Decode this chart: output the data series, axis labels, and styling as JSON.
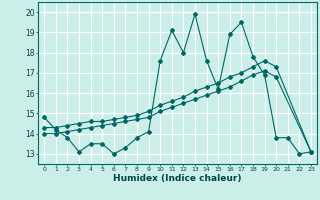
{
  "xlabel": "Humidex (Indice chaleur)",
  "bg_color": "#cceee8",
  "grid_color": "#ffffff",
  "line_color": "#006666",
  "xlim": [
    -0.5,
    23.5
  ],
  "ylim": [
    12.5,
    20.5
  ],
  "yticks": [
    13,
    14,
    15,
    16,
    17,
    18,
    19,
    20
  ],
  "xticks": [
    0,
    1,
    2,
    3,
    4,
    5,
    6,
    7,
    8,
    9,
    10,
    11,
    12,
    13,
    14,
    15,
    16,
    17,
    18,
    19,
    20,
    21,
    22,
    23
  ],
  "line1_x": [
    0,
    1,
    2,
    3,
    4,
    5,
    6,
    7,
    8,
    9,
    10,
    11,
    12,
    13,
    14,
    15,
    16,
    17,
    18,
    19,
    20,
    21,
    22,
    23
  ],
  "line1_y": [
    14.8,
    14.2,
    13.8,
    13.1,
    13.5,
    13.5,
    13.0,
    13.3,
    13.8,
    14.1,
    17.6,
    19.1,
    18.0,
    19.9,
    17.6,
    16.2,
    18.9,
    19.5,
    17.8,
    16.9,
    13.8,
    13.8,
    13.0,
    13.1
  ],
  "line2_x": [
    0,
    1,
    2,
    3,
    4,
    5,
    6,
    7,
    8,
    9,
    10,
    11,
    12,
    13,
    14,
    15,
    16,
    17,
    18,
    19,
    20,
    23
  ],
  "line2_y": [
    14.0,
    14.0,
    14.1,
    14.2,
    14.3,
    14.4,
    14.5,
    14.6,
    14.7,
    14.8,
    15.1,
    15.3,
    15.5,
    15.7,
    15.9,
    16.1,
    16.3,
    16.6,
    16.9,
    17.1,
    16.8,
    13.1
  ],
  "line3_x": [
    0,
    1,
    2,
    3,
    4,
    5,
    6,
    7,
    8,
    9,
    10,
    11,
    12,
    13,
    14,
    15,
    16,
    17,
    18,
    19,
    20,
    23
  ],
  "line3_y": [
    14.3,
    14.3,
    14.4,
    14.5,
    14.6,
    14.6,
    14.7,
    14.8,
    14.9,
    15.1,
    15.4,
    15.6,
    15.8,
    16.1,
    16.3,
    16.5,
    16.8,
    17.0,
    17.3,
    17.6,
    17.3,
    13.1
  ]
}
